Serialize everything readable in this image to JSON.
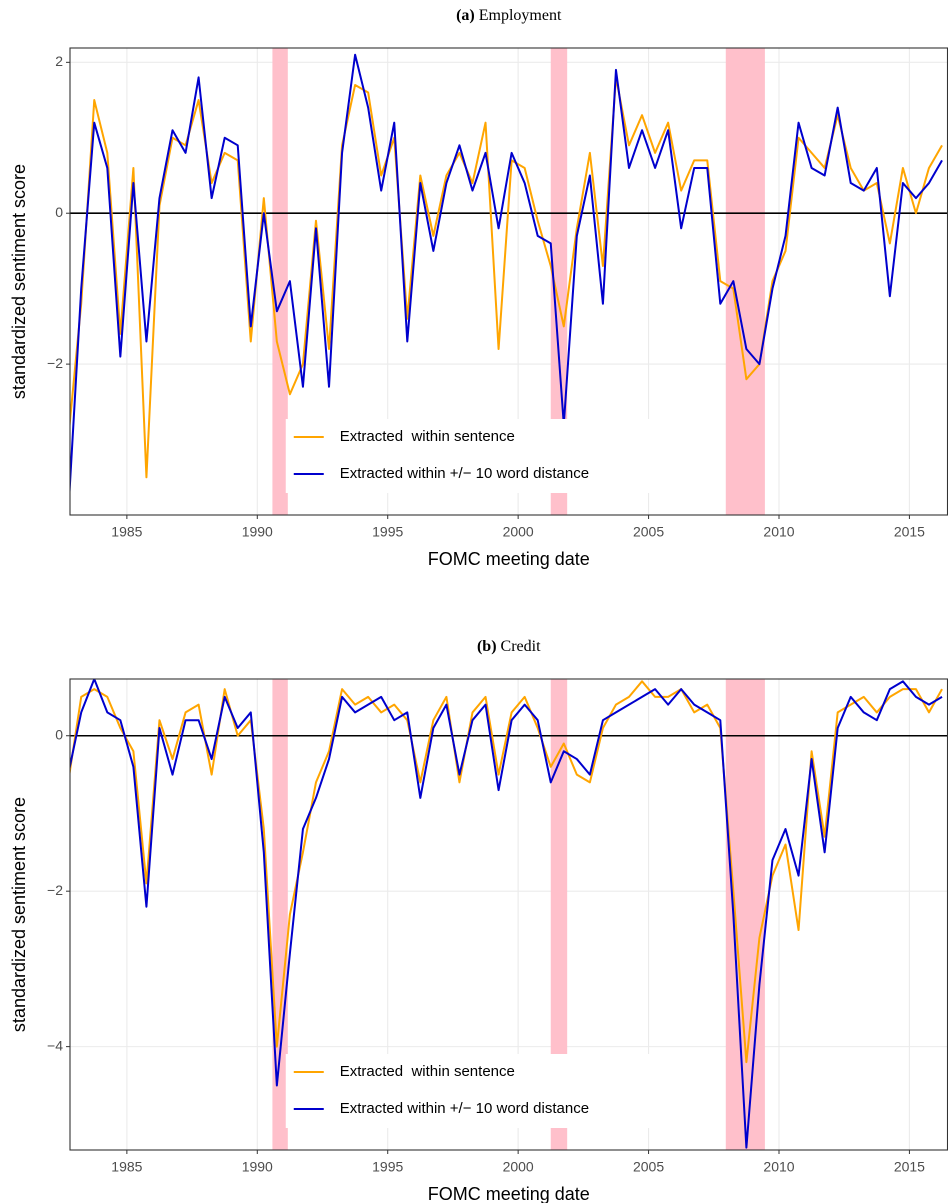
{
  "chart_data": [
    {
      "type": "line",
      "panel_label": "(a)",
      "title": "Employment",
      "x_label": "FOMC meeting date",
      "y_label": "standardized sentiment score",
      "x": [
        1982.75,
        1983.25,
        1983.75,
        1984.25,
        1984.75,
        1985.25,
        1985.75,
        1986.25,
        1986.75,
        1987.25,
        1987.75,
        1988.25,
        1988.75,
        1989.25,
        1989.75,
        1990.25,
        1990.75,
        1991.25,
        1991.75,
        1992.25,
        1992.75,
        1993.25,
        1993.75,
        1994.25,
        1994.75,
        1995.25,
        1995.75,
        1996.25,
        1996.75,
        1997.25,
        1997.75,
        1998.25,
        1998.75,
        1999.25,
        1999.75,
        2000.25,
        2000.75,
        2001.25,
        2001.75,
        2002.25,
        2002.75,
        2003.25,
        2003.75,
        2004.25,
        2004.75,
        2005.25,
        2005.75,
        2006.25,
        2006.75,
        2007.25,
        2007.75,
        2008.25,
        2008.75,
        2009.25,
        2009.75,
        2010.25,
        2010.75,
        2011.25,
        2011.75,
        2012.25,
        2012.75,
        2013.25,
        2013.75,
        2014.25,
        2014.75,
        2015.25,
        2015.75,
        2016.25
      ],
      "series": [
        {
          "name": "Extracted  within sentence",
          "color": "#ffa500",
          "values": [
            -3.0,
            -1.2,
            1.5,
            0.8,
            -1.6,
            0.6,
            -3.5,
            0.1,
            1.0,
            0.9,
            1.5,
            0.4,
            0.8,
            0.7,
            -1.7,
            0.2,
            -1.7,
            -2.4,
            -2.0,
            -0.1,
            -1.8,
            0.9,
            1.7,
            1.6,
            0.5,
            1.0,
            -1.4,
            0.5,
            -0.3,
            0.5,
            0.8,
            0.4,
            1.2,
            -1.8,
            0.7,
            0.6,
            -0.1,
            -0.7,
            -1.5,
            -0.2,
            0.8,
            -0.7,
            1.8,
            0.9,
            1.3,
            0.8,
            1.2,
            0.3,
            0.7,
            0.7,
            -0.9,
            -1.0,
            -2.2,
            -2.0,
            -0.9,
            -0.5,
            1.0,
            0.8,
            0.6,
            1.3,
            0.6,
            0.3,
            0.4,
            -0.4,
            0.6,
            0.0,
            0.6,
            0.9
          ]
        },
        {
          "name": "Extracted within +/− 10 word distance",
          "color": "#0000cd",
          "values": [
            -4.0,
            -1.0,
            1.2,
            0.6,
            -1.9,
            0.4,
            -1.7,
            0.2,
            1.1,
            0.8,
            1.8,
            0.2,
            1.0,
            0.9,
            -1.5,
            0.0,
            -1.3,
            -0.9,
            -2.3,
            -0.2,
            -2.3,
            0.8,
            2.1,
            1.4,
            0.3,
            1.2,
            -1.7,
            0.4,
            -0.5,
            0.4,
            0.9,
            0.3,
            0.8,
            -0.2,
            0.8,
            0.4,
            -0.3,
            -0.4,
            -2.8,
            -0.3,
            0.5,
            -1.2,
            1.9,
            0.6,
            1.1,
            0.6,
            1.1,
            -0.2,
            0.6,
            0.6,
            -1.2,
            -0.9,
            -1.8,
            -2.0,
            -1.0,
            -0.3,
            1.2,
            0.6,
            0.5,
            1.4,
            0.4,
            0.3,
            0.6,
            -1.1,
            0.4,
            0.2,
            0.4,
            0.7
          ]
        }
      ],
      "shaded_regions": [
        [
          1990.58,
          1991.17
        ],
        [
          2001.25,
          2001.88
        ],
        [
          2007.96,
          2009.46
        ]
      ],
      "shade_color": "#ffc0cb",
      "reference_line": 0,
      "xlim": [
        1982.82,
        2016.46
      ],
      "xticks": [
        1985,
        1990,
        1995,
        2000,
        2005,
        2010,
        2015
      ],
      "ylim": [
        -4.0,
        2.19
      ],
      "yticks": [
        {
          "value": -2,
          "label": "−2"
        },
        0,
        2
      ],
      "grid": true,
      "legend_position": "bottom"
    },
    {
      "type": "line",
      "panel_label": "(b)",
      "title": "Credit",
      "x_label": "FOMC meeting date",
      "y_label": "standardized sentiment score",
      "x": [
        1982.75,
        1983.25,
        1983.75,
        1984.25,
        1984.75,
        1985.25,
        1985.75,
        1986.25,
        1986.75,
        1987.25,
        1987.75,
        1988.25,
        1988.75,
        1989.25,
        1989.75,
        1990.25,
        1990.75,
        1991.25,
        1991.75,
        1992.25,
        1992.75,
        1993.25,
        1993.75,
        1994.25,
        1994.75,
        1995.25,
        1995.75,
        1996.25,
        1996.75,
        1997.25,
        1997.75,
        1998.25,
        1998.75,
        1999.25,
        1999.75,
        2000.25,
        2000.75,
        2001.25,
        2001.75,
        2002.25,
        2002.75,
        2003.25,
        2003.75,
        2004.25,
        2004.75,
        2005.25,
        2005.75,
        2006.25,
        2006.75,
        2007.25,
        2007.75,
        2008.25,
        2008.75,
        2009.25,
        2009.75,
        2010.25,
        2010.75,
        2011.25,
        2011.75,
        2012.25,
        2012.75,
        2013.25,
        2013.75,
        2014.25,
        2014.75,
        2015.25,
        2015.75,
        2016.25
      ],
      "series": [
        {
          "name": "Extracted  within sentence",
          "color": "#ffa500",
          "values": [
            -0.6,
            0.5,
            0.6,
            0.5,
            0.1,
            -0.2,
            -1.9,
            0.2,
            -0.3,
            0.3,
            0.4,
            -0.5,
            0.6,
            0.0,
            0.2,
            -1.2,
            -4.0,
            -2.3,
            -1.5,
            -0.6,
            -0.2,
            0.6,
            0.4,
            0.5,
            0.3,
            0.4,
            0.2,
            -0.6,
            0.2,
            0.5,
            -0.6,
            0.3,
            0.5,
            -0.5,
            0.3,
            0.5,
            0.1,
            -0.4,
            -0.1,
            -0.5,
            -0.6,
            0.1,
            0.4,
            0.5,
            0.7,
            0.5,
            0.5,
            0.6,
            0.3,
            0.4,
            0.1,
            -2.0,
            -4.2,
            -2.6,
            -1.8,
            -1.4,
            -2.5,
            -0.2,
            -1.3,
            0.3,
            0.4,
            0.5,
            0.3,
            0.5,
            0.6,
            0.6,
            0.3,
            0.6
          ]
        },
        {
          "name": "Extracted within +/− 10 word distance",
          "color": "#0000cd",
          "values": [
            -0.5,
            0.3,
            0.73,
            0.3,
            0.2,
            -0.4,
            -2.2,
            0.1,
            -0.5,
            0.2,
            0.2,
            -0.3,
            0.5,
            0.1,
            0.3,
            -1.5,
            -4.5,
            -2.8,
            -1.2,
            -0.8,
            -0.3,
            0.5,
            0.3,
            0.4,
            0.5,
            0.2,
            0.3,
            -0.8,
            0.1,
            0.4,
            -0.5,
            0.2,
            0.4,
            -0.7,
            0.2,
            0.4,
            0.2,
            -0.6,
            -0.2,
            -0.3,
            -0.5,
            0.2,
            0.3,
            0.4,
            0.5,
            0.6,
            0.4,
            0.6,
            0.4,
            0.3,
            0.2,
            -2.3,
            -5.3,
            -3.2,
            -1.6,
            -1.2,
            -1.8,
            -0.3,
            -1.5,
            0.1,
            0.5,
            0.3,
            0.2,
            0.6,
            0.7,
            0.5,
            0.4,
            0.5
          ]
        }
      ],
      "shaded_regions": [
        [
          1990.58,
          1991.17
        ],
        [
          2001.25,
          2001.88
        ],
        [
          2007.96,
          2009.46
        ]
      ],
      "shade_color": "#ffc0cb",
      "reference_line": 0,
      "xlim": [
        1982.82,
        2016.46
      ],
      "xticks": [
        1985,
        1990,
        1995,
        2000,
        2005,
        2010,
        2015
      ],
      "ylim": [
        -5.33,
        0.73
      ],
      "yticks": [
        {
          "value": -4,
          "label": "−4"
        },
        {
          "value": -2,
          "label": "−2"
        },
        0
      ],
      "grid": true,
      "legend_position": "bottom"
    }
  ]
}
